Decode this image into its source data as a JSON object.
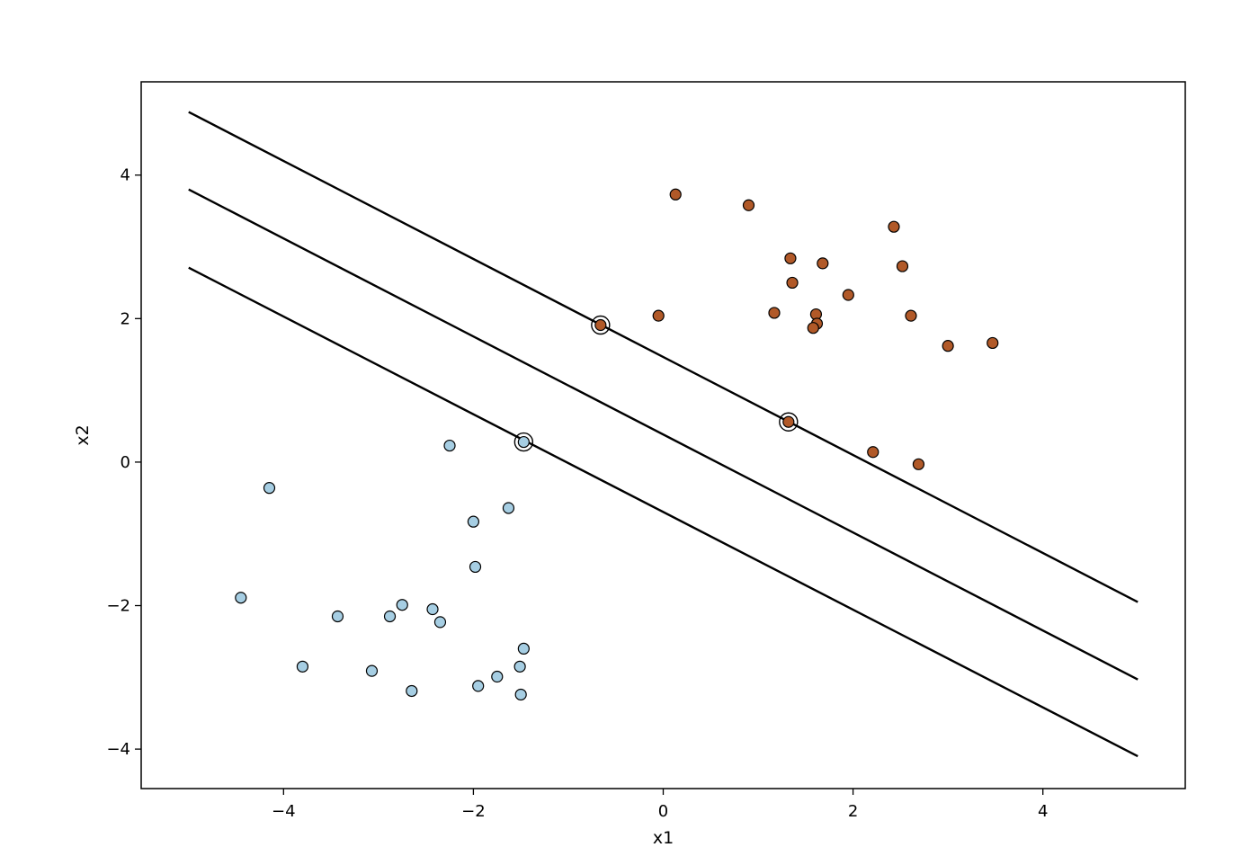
{
  "chart_data": {
    "type": "scatter",
    "title": "",
    "xlabel": "x1",
    "ylabel": "x2",
    "xlim": [
      -5.5,
      5.5
    ],
    "ylim": [
      -4.55,
      5.3
    ],
    "xticks": [
      -4,
      -2,
      0,
      2,
      4
    ],
    "yticks": [
      -4,
      -2,
      0,
      2,
      4
    ],
    "xtick_labels": [
      "−4",
      "−2",
      "0",
      "2",
      "4"
    ],
    "ytick_labels": [
      "−4",
      "−2",
      "0",
      "2",
      "4"
    ],
    "grid": false,
    "colors": {
      "class_0": "#a6cee3",
      "class_1": "#b15928",
      "edge": "#000000",
      "line": "#000000"
    },
    "series": [
      {
        "class": 0,
        "points": [
          [
            -2.25,
            0.23
          ],
          [
            -4.15,
            -0.36
          ],
          [
            -1.63,
            -0.64
          ],
          [
            -2.0,
            -0.83
          ],
          [
            -1.98,
            -1.46
          ],
          [
            -4.45,
            -1.89
          ],
          [
            -3.43,
            -2.15
          ],
          [
            -2.88,
            -2.15
          ],
          [
            -2.75,
            -1.99
          ],
          [
            -2.43,
            -2.05
          ],
          [
            -2.35,
            -2.23
          ],
          [
            -1.47,
            -2.6
          ],
          [
            -3.8,
            -2.85
          ],
          [
            -3.07,
            -2.91
          ],
          [
            -1.51,
            -2.85
          ],
          [
            -1.75,
            -2.99
          ],
          [
            -1.95,
            -3.12
          ],
          [
            -2.65,
            -3.19
          ],
          [
            -1.5,
            -3.24
          ],
          [
            -1.47,
            0.28
          ]
        ]
      },
      {
        "class": 1,
        "points": [
          [
            0.13,
            3.73
          ],
          [
            0.9,
            3.58
          ],
          [
            2.43,
            3.28
          ],
          [
            1.34,
            2.84
          ],
          [
            1.68,
            2.77
          ],
          [
            2.52,
            2.73
          ],
          [
            1.36,
            2.5
          ],
          [
            1.95,
            2.33
          ],
          [
            -0.05,
            2.04
          ],
          [
            1.17,
            2.08
          ],
          [
            1.61,
            2.06
          ],
          [
            2.61,
            2.04
          ],
          [
            1.62,
            1.93
          ],
          [
            1.58,
            1.87
          ],
          [
            3.47,
            1.66
          ],
          [
            3.0,
            1.62
          ],
          [
            2.21,
            0.14
          ],
          [
            2.69,
            -0.03
          ],
          [
            -0.66,
            1.91
          ],
          [
            1.32,
            0.56
          ]
        ]
      }
    ],
    "support_vectors": [
      [
        -0.66,
        1.91
      ],
      [
        1.32,
        0.56
      ],
      [
        -1.47,
        0.28
      ]
    ],
    "lines": [
      {
        "name": "margin_upper",
        "x": [
          -5.0,
          5.0
        ],
        "y": [
          4.88,
          -1.95
        ]
      },
      {
        "name": "decision_boundary",
        "x": [
          -5.0,
          5.0
        ],
        "y": [
          3.8,
          -3.03
        ]
      },
      {
        "name": "margin_lower",
        "x": [
          -5.0,
          5.0
        ],
        "y": [
          2.71,
          -4.1
        ]
      }
    ]
  }
}
